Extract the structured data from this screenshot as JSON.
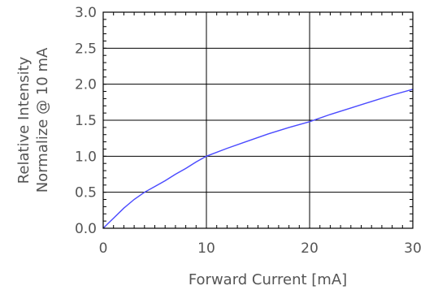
{
  "chart_data": {
    "type": "line",
    "title": "",
    "xlabel": "Forward Current [mA]",
    "ylabel_lines": [
      "Relative Intensity",
      "Normalize @ 10 mA"
    ],
    "xlim": [
      0,
      30
    ],
    "ylim": [
      0,
      3
    ],
    "x_ticks": [
      0,
      10,
      20,
      30
    ],
    "y_ticks": [
      0.0,
      0.5,
      1.0,
      1.5,
      2.0,
      2.5,
      3.0
    ],
    "x_tick_labels": [
      "0",
      "10",
      "20",
      "30"
    ],
    "y_tick_labels": [
      "0.0",
      "0.5",
      "1.0",
      "1.5",
      "2.0",
      "2.5",
      "3.0"
    ],
    "grid": true,
    "series": [
      {
        "color": "#4a4aff",
        "x": [
          0,
          0.5,
          1,
          2,
          3,
          4,
          5,
          6,
          7,
          8,
          9,
          10,
          12,
          14,
          16,
          18,
          20,
          22,
          24,
          26,
          28,
          30
        ],
        "y": [
          0,
          0.07,
          0.14,
          0.28,
          0.4,
          0.5,
          0.58,
          0.66,
          0.75,
          0.83,
          0.92,
          1.0,
          1.11,
          1.21,
          1.31,
          1.4,
          1.48,
          1.58,
          1.67,
          1.76,
          1.85,
          1.93
        ]
      }
    ]
  }
}
